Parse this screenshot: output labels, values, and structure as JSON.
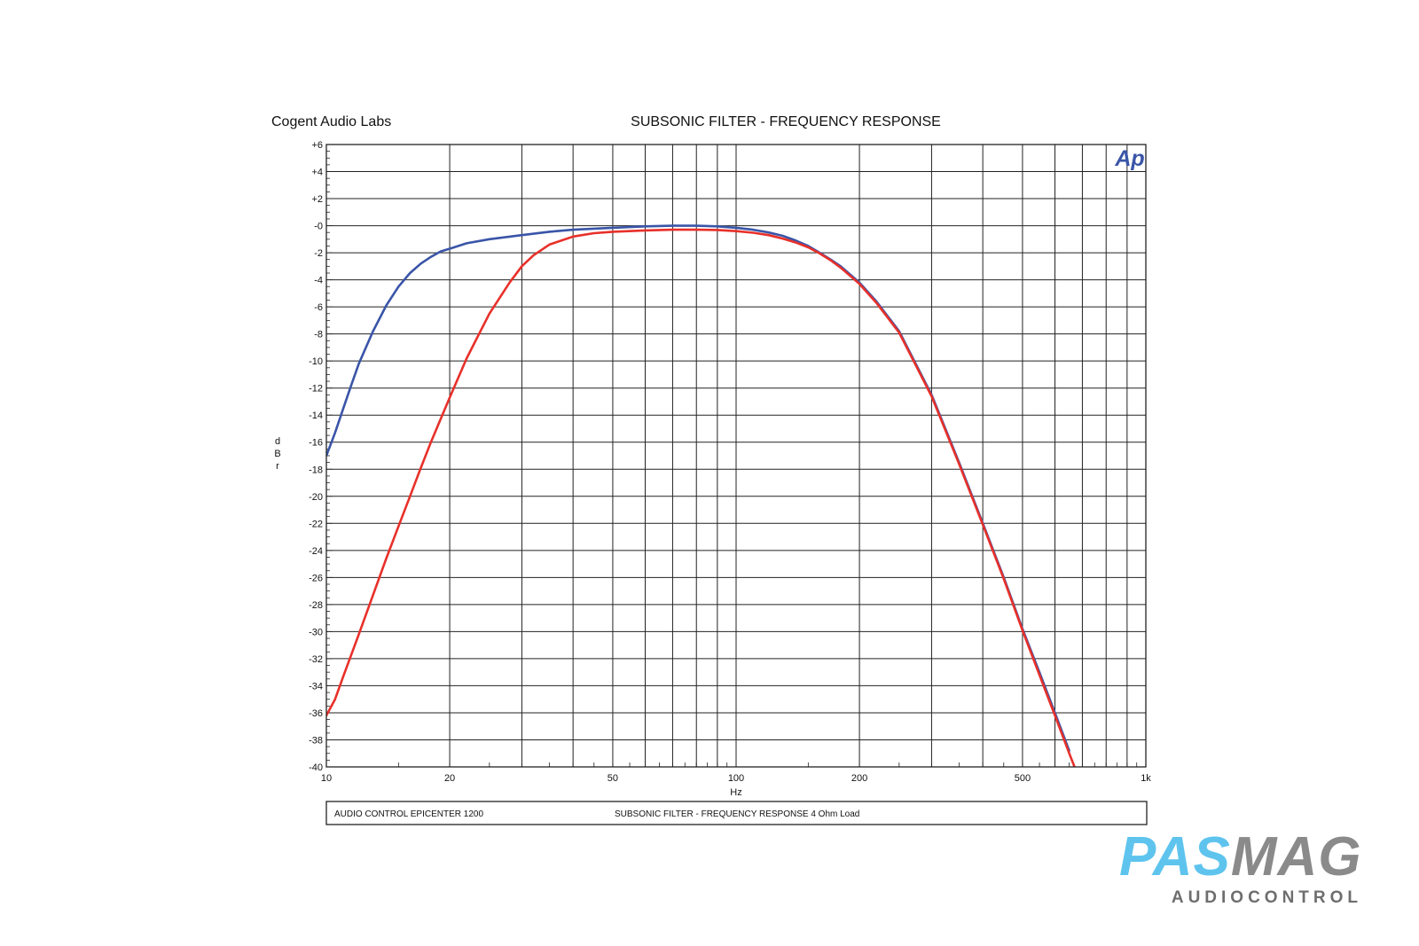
{
  "header": {
    "company": "Cogent Audio Labs",
    "title": "SUBSONIC FILTER  -  FREQUENCY RESPONSE"
  },
  "ap_logo": "Ap",
  "footer": {
    "device": "AUDIO CONTROL  EPICENTER 1200",
    "description": "SUBSONIC FILTER  -  FREQUENCY RESPONSE    4 Ohm Load"
  },
  "brand": {
    "name_part1": "PAS",
    "name_part2": "MAG",
    "subtitle": "AUDIOCONTROL",
    "color_part1": "#5ec4ee",
    "color_part2": "#8a8a8a"
  },
  "chart_data": {
    "type": "line",
    "xlabel": "Hz",
    "ylabel": "dBr",
    "xscale": "log",
    "xlim": [
      10,
      1000
    ],
    "ylim": [
      -40,
      6
    ],
    "grid": true,
    "x_ticks": [
      {
        "value": 10,
        "label": "10"
      },
      {
        "value": 20,
        "label": "20"
      },
      {
        "value": 50,
        "label": "50"
      },
      {
        "value": 100,
        "label": "100"
      },
      {
        "value": 200,
        "label": "200"
      },
      {
        "value": 500,
        "label": "500"
      },
      {
        "value": 1000,
        "label": "1k"
      }
    ],
    "y_ticks": [
      {
        "value": 6,
        "label": "+6"
      },
      {
        "value": 4,
        "label": "+4"
      },
      {
        "value": 2,
        "label": "+2"
      },
      {
        "value": 0,
        "label": "-0"
      },
      {
        "value": -2,
        "label": "-2"
      },
      {
        "value": -4,
        "label": "-4"
      },
      {
        "value": -6,
        "label": "-6"
      },
      {
        "value": -8,
        "label": "-8"
      },
      {
        "value": -10,
        "label": "-10"
      },
      {
        "value": -12,
        "label": "-12"
      },
      {
        "value": -14,
        "label": "-14"
      },
      {
        "value": -16,
        "label": "-16"
      },
      {
        "value": -18,
        "label": "-18"
      },
      {
        "value": -20,
        "label": "-20"
      },
      {
        "value": -22,
        "label": "-22"
      },
      {
        "value": -24,
        "label": "-24"
      },
      {
        "value": -26,
        "label": "-26"
      },
      {
        "value": -28,
        "label": "-28"
      },
      {
        "value": -30,
        "label": "-30"
      },
      {
        "value": -32,
        "label": "-32"
      },
      {
        "value": -34,
        "label": "-34"
      },
      {
        "value": -36,
        "label": "-36"
      },
      {
        "value": -38,
        "label": "-38"
      },
      {
        "value": -40,
        "label": "-40"
      }
    ],
    "series": [
      {
        "color": "#3a55a8",
        "x": [
          10,
          10.5,
          11,
          11.5,
          12,
          13,
          14,
          15,
          16,
          17,
          18,
          19,
          20,
          22,
          25,
          30,
          35,
          40,
          50,
          60,
          70,
          80,
          90,
          100,
          110,
          120,
          130,
          140,
          150,
          160,
          170,
          180,
          200,
          220,
          250,
          300,
          350,
          400,
          450,
          500,
          550,
          600,
          650
        ],
        "y": [
          -17,
          -15.3,
          -13.5,
          -11.8,
          -10.2,
          -7.8,
          -5.9,
          -4.5,
          -3.5,
          -2.8,
          -2.3,
          -1.9,
          -1.7,
          -1.3,
          -1.0,
          -0.7,
          -0.45,
          -0.3,
          -0.15,
          -0.05,
          0,
          0,
          -0.05,
          -0.15,
          -0.3,
          -0.5,
          -0.75,
          -1.1,
          -1.5,
          -2.0,
          -2.5,
          -3.0,
          -4.2,
          -5.6,
          -7.8,
          -12.5,
          -17.5,
          -22,
          -26,
          -29.8,
          -33,
          -36,
          -38.8
        ]
      },
      {
        "color": "#e8302a",
        "x": [
          10,
          10.5,
          11,
          12,
          13,
          14,
          15,
          16,
          17,
          18,
          19,
          20,
          22,
          25,
          28,
          30,
          32,
          35,
          40,
          45,
          50,
          60,
          70,
          80,
          90,
          100,
          110,
          120,
          130,
          140,
          150,
          160,
          170,
          180,
          200,
          220,
          250,
          300,
          350,
          400,
          450,
          500,
          550,
          600,
          650,
          670
        ],
        "y": [
          -36.2,
          -35,
          -33.3,
          -30.2,
          -27.3,
          -24.6,
          -22.2,
          -20.0,
          -17.9,
          -16.0,
          -14.3,
          -12.7,
          -9.8,
          -6.5,
          -4.2,
          -3.0,
          -2.2,
          -1.4,
          -0.8,
          -0.55,
          -0.45,
          -0.35,
          -0.3,
          -0.3,
          -0.32,
          -0.4,
          -0.52,
          -0.7,
          -0.95,
          -1.25,
          -1.6,
          -2.05,
          -2.55,
          -3.1,
          -4.3,
          -5.7,
          -7.9,
          -12.6,
          -17.6,
          -22.1,
          -26.1,
          -29.9,
          -33.2,
          -36.2,
          -39,
          -40
        ]
      }
    ]
  }
}
